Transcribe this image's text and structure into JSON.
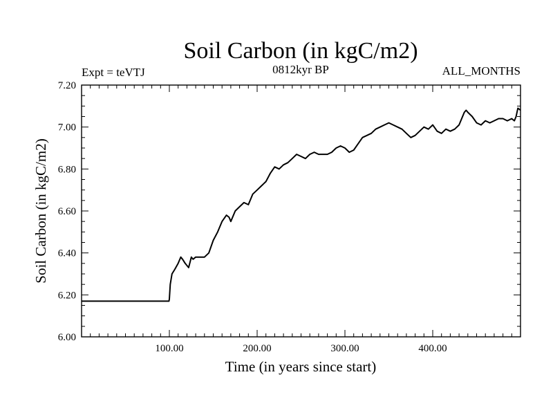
{
  "chart_data": {
    "type": "line",
    "title": "Soil Carbon (in kgC/m2)",
    "subtitle_left": "Expt = teVTJ",
    "subtitle_center": "0812kyr BP",
    "subtitle_right": "ALL_MONTHS",
    "xlabel": "Time (in years since start)",
    "ylabel": "Soil Carbon (in kgC/m2)",
    "xlim": [
      0,
      500
    ],
    "ylim": [
      6.0,
      7.2
    ],
    "x_major_ticks": [
      100,
      200,
      300,
      400
    ],
    "x_tick_labels": [
      "100.00",
      "200.00",
      "300.00",
      "400.00"
    ],
    "x_minor_step": 10,
    "y_major_ticks": [
      6.0,
      6.2,
      6.4,
      6.6,
      6.8,
      7.0,
      7.2
    ],
    "y_tick_labels": [
      "6.00",
      "6.20",
      "6.40",
      "6.60",
      "6.80",
      "7.00",
      "7.20"
    ],
    "y_minor_step": 0.05,
    "grid": false,
    "series": [
      {
        "name": "Soil Carbon",
        "color": "#000000",
        "x": [
          0,
          99.5,
          100,
          101,
          103,
          106,
          110,
          113,
          115,
          118,
          122,
          125,
          127,
          130,
          135,
          140,
          145,
          150,
          155,
          160,
          165,
          168,
          170,
          175,
          180,
          185,
          190,
          195,
          200,
          205,
          210,
          215,
          220,
          225,
          230,
          235,
          240,
          245,
          250,
          255,
          260,
          265,
          270,
          275,
          280,
          285,
          290,
          295,
          300,
          305,
          310,
          315,
          320,
          325,
          330,
          335,
          340,
          345,
          350,
          355,
          360,
          365,
          370,
          375,
          380,
          385,
          390,
          395,
          400,
          405,
          410,
          415,
          420,
          425,
          430,
          433,
          436,
          438,
          440,
          445,
          450,
          455,
          460,
          465,
          470,
          475,
          480,
          485,
          490,
          493,
          495,
          497,
          500
        ],
        "values": [
          6.17,
          6.17,
          6.18,
          6.25,
          6.3,
          6.32,
          6.35,
          6.38,
          6.37,
          6.35,
          6.33,
          6.38,
          6.37,
          6.38,
          6.38,
          6.38,
          6.4,
          6.46,
          6.5,
          6.55,
          6.58,
          6.57,
          6.55,
          6.6,
          6.62,
          6.64,
          6.63,
          6.68,
          6.7,
          6.72,
          6.74,
          6.78,
          6.81,
          6.8,
          6.82,
          6.83,
          6.85,
          6.87,
          6.86,
          6.85,
          6.87,
          6.88,
          6.87,
          6.87,
          6.87,
          6.88,
          6.9,
          6.91,
          6.9,
          6.88,
          6.89,
          6.92,
          6.95,
          6.96,
          6.97,
          6.99,
          7.0,
          7.01,
          7.02,
          7.01,
          7.0,
          6.99,
          6.97,
          6.95,
          6.96,
          6.98,
          7.0,
          6.99,
          7.01,
          6.98,
          6.97,
          6.99,
          6.98,
          6.99,
          7.01,
          7.04,
          7.07,
          7.08,
          7.07,
          7.05,
          7.02,
          7.01,
          7.03,
          7.02,
          7.03,
          7.04,
          7.04,
          7.03,
          7.04,
          7.03,
          7.05,
          7.09,
          7.08
        ]
      }
    ]
  }
}
